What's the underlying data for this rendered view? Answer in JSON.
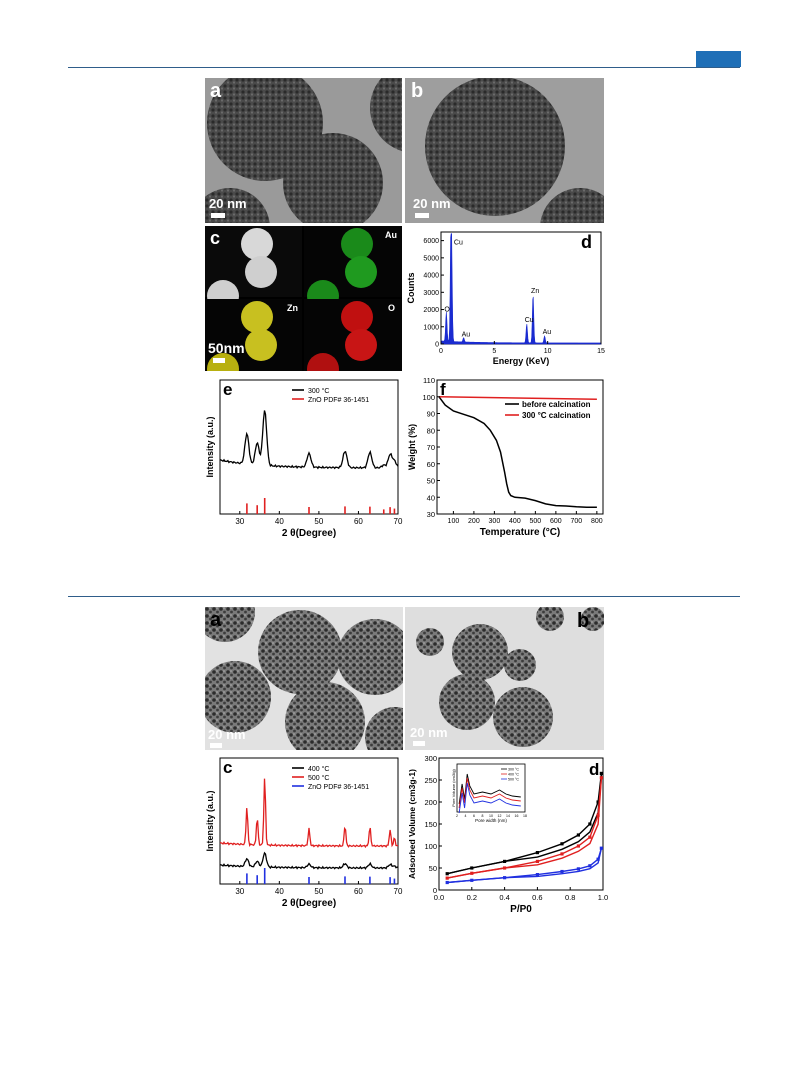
{
  "figure1": {
    "a": {
      "label": "a",
      "scale": "20 nm"
    },
    "b": {
      "label": "b",
      "scale": "20 nm"
    },
    "c": {
      "label": "c",
      "scale": "50nm",
      "elements": [
        "Au",
        "Zn",
        "O"
      ]
    },
    "d": {
      "label": "d",
      "chart_data": {
        "type": "line",
        "xlabel": "Energy (KeV)",
        "ylabel": "Counts",
        "xlim": [
          0,
          15
        ],
        "ylim": [
          0,
          6500
        ],
        "xticks": [
          0,
          5,
          10,
          15
        ],
        "yticks": [
          0,
          1000,
          2000,
          3000,
          4000,
          5000,
          6000
        ],
        "peaks": [
          {
            "x": 0.5,
            "y": 1700,
            "label": "O"
          },
          {
            "x": 0.93,
            "y": 5600,
            "label": "Cu"
          },
          {
            "x": 1.0,
            "y": 3500,
            "label": ""
          },
          {
            "x": 2.12,
            "y": 250,
            "label": "Au"
          },
          {
            "x": 8.04,
            "y": 1100,
            "label": "Cu"
          },
          {
            "x": 8.63,
            "y": 2800,
            "label": "Zn"
          },
          {
            "x": 9.71,
            "y": 400,
            "label": "Au"
          }
        ]
      }
    },
    "e": {
      "label": "e",
      "chart_data": {
        "type": "line",
        "xlabel": "2 θ(Degree)",
        "ylabel": "Intensity (a.u.)",
        "xlim": [
          25,
          70
        ],
        "xticks": [
          30,
          40,
          50,
          60,
          70
        ],
        "legend": [
          "300 °C",
          "ZnO PDF# 36-1451"
        ],
        "series": [
          {
            "name": "300 °C",
            "color": "#000000"
          }
        ],
        "reference_peaks": [
          {
            "x": 31.8,
            "h": 0.55
          },
          {
            "x": 34.4,
            "h": 0.4
          },
          {
            "x": 36.3,
            "h": 1.0
          },
          {
            "x": 47.5,
            "h": 0.25
          },
          {
            "x": 56.6,
            "h": 0.3
          },
          {
            "x": 62.9,
            "h": 0.28
          },
          {
            "x": 66.4,
            "h": 0.05
          },
          {
            "x": 68.0,
            "h": 0.24
          },
          {
            "x": 69.1,
            "h": 0.12
          }
        ],
        "ref_color": "#e02020"
      }
    },
    "f": {
      "label": "f",
      "chart_data": {
        "type": "line",
        "xlabel": "Temperature (°C)",
        "ylabel": "Weight (%)",
        "xlim": [
          20,
          830
        ],
        "ylim": [
          30,
          110
        ],
        "xticks": [
          100,
          200,
          300,
          400,
          500,
          600,
          700,
          800
        ],
        "yticks": [
          30,
          40,
          50,
          60,
          70,
          80,
          90,
          100,
          110
        ],
        "legend": [
          "before calcination",
          "300 °C calcination"
        ],
        "series": [
          {
            "name": "before calcination",
            "color": "#000000",
            "x": [
              30,
              60,
              100,
              150,
              200,
              250,
              280,
              310,
              330,
              350,
              360,
              370,
              380,
              400,
              450,
              500,
              550,
              600,
              650,
              700,
              750,
              800
            ],
            "y": [
              100,
              95,
              91.5,
              89.5,
              87.5,
              84,
              80,
              74,
              67,
              55,
              48,
              43,
              41,
              40,
              39.5,
              38,
              36,
              35,
              34.8,
              34.3,
              34,
              34
            ]
          },
          {
            "name": "300 °C calcination",
            "color": "#e02020",
            "x": [
              30,
              800
            ],
            "y": [
              100,
              98.5
            ]
          }
        ]
      }
    }
  },
  "figure2": {
    "a": {
      "label": "a",
      "scale": "20 nm"
    },
    "b": {
      "label": "b",
      "scale": "20 nm"
    },
    "c": {
      "label": "c",
      "chart_data": {
        "type": "line",
        "xlabel": "2 θ(Degree)",
        "ylabel": "Intensity (a.u.)",
        "xlim": [
          25,
          70
        ],
        "xticks": [
          30,
          40,
          50,
          60,
          70
        ],
        "legend": [
          "400 °C",
          "500 °C",
          "ZnO PDF# 36-1451"
        ],
        "series": [
          {
            "name": "400 °C",
            "color": "#000000"
          },
          {
            "name": "500 °C",
            "color": "#e02020"
          }
        ],
        "reference_peaks": [
          {
            "x": 31.8,
            "h": 0.55
          },
          {
            "x": 34.4,
            "h": 0.4
          },
          {
            "x": 36.3,
            "h": 1.0
          },
          {
            "x": 47.5,
            "h": 0.25
          },
          {
            "x": 56.6,
            "h": 0.3
          },
          {
            "x": 62.9,
            "h": 0.28
          },
          {
            "x": 68.0,
            "h": 0.24
          },
          {
            "x": 69.1,
            "h": 0.12
          }
        ],
        "ref_color": "#2030e0"
      }
    },
    "d": {
      "label": "d",
      "chart_data": {
        "type": "line",
        "xlabel": "P/P0",
        "ylabel": "Adsorbed Volume (cm3g-1)",
        "xlim": [
          0,
          1.0
        ],
        "ylim": [
          0,
          300
        ],
        "xticks": [
          0.0,
          0.2,
          0.4,
          0.6,
          0.8,
          1.0
        ],
        "yticks": [
          0,
          50,
          100,
          150,
          200,
          250,
          300
        ],
        "series": [
          {
            "name": "300 °C",
            "color": "#000000",
            "x": [
              0.05,
              0.2,
              0.4,
              0.6,
              0.75,
              0.85,
              0.92,
              0.97,
              0.99
            ],
            "y": [
              37,
              50,
              65,
              85,
              105,
              125,
              150,
              200,
              265
            ]
          },
          {
            "name": "400 °C",
            "color": "#e02020",
            "x": [
              0.05,
              0.2,
              0.4,
              0.6,
              0.75,
              0.85,
              0.92,
              0.97,
              0.99
            ],
            "y": [
              27,
              38,
              50,
              65,
              82,
              100,
              120,
              170,
              255
            ]
          },
          {
            "name": "500 °C",
            "color": "#2030e0",
            "x": [
              0.05,
              0.2,
              0.4,
              0.6,
              0.75,
              0.85,
              0.92,
              0.97,
              0.99
            ],
            "y": [
              17,
              22,
              28,
              35,
              42,
              48,
              55,
              70,
              95
            ]
          }
        ],
        "inset": {
          "xlabel": "Pore width (nm)",
          "ylabel": "Pore Volume (cm3/g)",
          "xticks": [
            2,
            4,
            6,
            8,
            10,
            12,
            14,
            16,
            18
          ],
          "legend": [
            "300 °C",
            "400 °C",
            "500 °C"
          ]
        }
      }
    }
  }
}
